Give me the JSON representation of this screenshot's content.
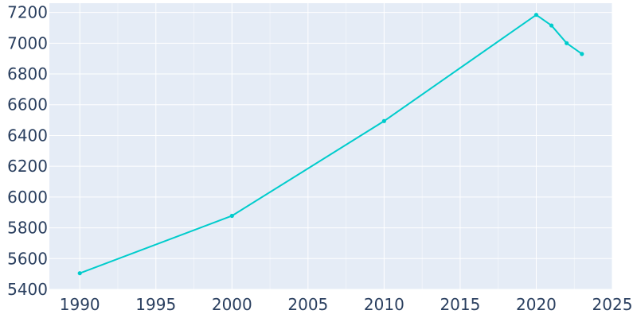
{
  "chart_data": {
    "type": "line",
    "title": "",
    "xlabel": "",
    "ylabel": "",
    "xlim": [
      1988,
      2025
    ],
    "ylim": [
      5400,
      7260
    ],
    "x_ticks": [
      1990,
      1995,
      2000,
      2005,
      2010,
      2015,
      2020,
      2025
    ],
    "y_ticks": [
      5400,
      5600,
      5800,
      6000,
      6200,
      6400,
      6600,
      6800,
      7000,
      7200
    ],
    "grid": true,
    "legend": "none",
    "colors": {
      "plot_bg": "#e5ecf6",
      "line": "#00cccc",
      "text": "#2a3f5f",
      "grid": "#ffffff"
    },
    "series": [
      {
        "x": [
          1990,
          2000,
          2010,
          2020,
          2021,
          2022,
          2023
        ],
        "y": [
          5505,
          5878,
          6494,
          7184,
          7115,
          7000,
          6930
        ]
      }
    ]
  }
}
